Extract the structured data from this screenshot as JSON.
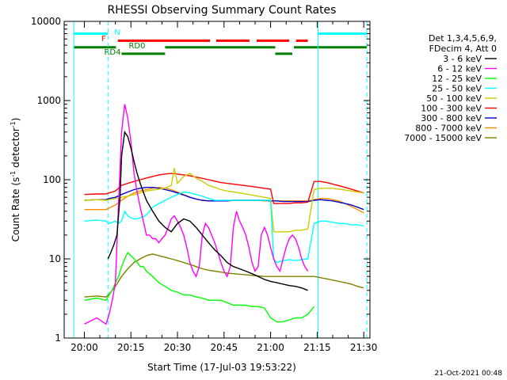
{
  "chart_data": {
    "type": "line",
    "title": "RHESSI Observing Summary Count Rates",
    "xlabel": "Start Time (17-Jul-03 19:53:22)",
    "ylabel_main": "Count Rate (s",
    "ylabel_sup1": "-1",
    "ylabel_mid": " detector",
    "ylabel_sup2": "-1",
    "ylabel_end": ")",
    "ylog": true,
    "ylim": [
      1,
      10000
    ],
    "xlim_minutes": [
      -3.4,
      31.6
    ],
    "x_tick_labels": [
      "20:00",
      "20:15",
      "20:30",
      "20:45",
      "21:00",
      "21:15",
      "21:30"
    ],
    "x_tick_minutes": [
      0,
      15,
      30,
      45,
      60,
      75,
      90
    ],
    "y_tick_labels": [
      "1",
      "10",
      "100",
      "1000",
      "10000"
    ],
    "y_tick_values": [
      1,
      10,
      100,
      1000,
      10000
    ],
    "legend_header": [
      "Det 1,3,4,5,6,9,",
      "FDecim 4, Att 0"
    ],
    "timestamp": "21-Oct-2021 00:48",
    "flags": [
      {
        "label": "N",
        "color": "#00ffff",
        "segments": [
          [
            -3.4,
            7.6
          ],
          [
            75.3,
            91.0
          ]
        ],
        "level": 7000
      },
      {
        "label": "F",
        "color": "#ff0000",
        "segments": [
          [
            10.8,
            40.5
          ],
          [
            42.5,
            53.2
          ],
          [
            55.5,
            66.0
          ],
          [
            68.2,
            72.0
          ]
        ],
        "level": 5700
      },
      {
        "label": "RD0",
        "color": "#008000",
        "segments": [
          [
            -3.4,
            10.2
          ],
          [
            26.0,
            61.5
          ],
          [
            67.5,
            91.0
          ]
        ],
        "level": 4700
      },
      {
        "label": "RD4",
        "color": "#008000",
        "segments": [
          [
            12.0,
            26.0
          ],
          [
            61.5,
            67.0
          ]
        ],
        "level": 3900
      }
    ],
    "vlines_cyan": [
      -3.4,
      7.6,
      75.3,
      91.0
    ],
    "series": [
      {
        "name": "3 - 6 keV",
        "color": "#000000",
        "x": [
          7.6,
          8.5,
          9.5,
          10.5,
          11.5,
          12.0,
          13.0,
          14.0,
          15.0,
          16.0,
          17.0,
          18.0,
          19.0,
          20.0,
          22.0,
          24.0,
          26.0,
          28.0,
          30.0,
          32.0,
          34.0,
          36.0,
          38.0,
          40.0,
          42.0,
          44.0,
          46.0,
          48.0,
          50.0,
          52.0,
          54.0,
          56.0,
          58.0,
          60.0,
          62.0,
          64.0,
          66.0,
          68.0,
          70.0,
          72.0
        ],
        "y": [
          10,
          12,
          15,
          20,
          60,
          200,
          400,
          350,
          250,
          170,
          120,
          90,
          70,
          55,
          40,
          30,
          25,
          22,
          28,
          32,
          30,
          25,
          20,
          16,
          13,
          11,
          9,
          8,
          7.5,
          7,
          6.5,
          6,
          5.5,
          5.2,
          5.0,
          4.8,
          4.6,
          4.5,
          4.3,
          4.0
        ]
      },
      {
        "name": "6 - 12 keV",
        "color": "#ff00ff",
        "x": [
          0,
          4,
          7,
          8,
          9,
          10,
          11,
          12,
          13,
          14,
          15,
          16,
          17,
          18,
          19,
          20,
          21,
          22,
          23,
          24,
          25,
          26,
          27,
          28,
          29,
          30,
          31,
          32,
          33,
          34,
          35,
          36,
          37,
          38,
          39,
          40,
          41,
          42,
          43,
          44,
          45,
          46,
          47,
          48,
          49,
          50,
          51,
          52,
          53,
          54,
          55,
          56,
          57,
          58,
          59,
          60,
          61,
          62,
          63,
          64,
          65,
          66,
          67,
          68,
          69,
          70,
          71,
          72
        ],
        "y": [
          1.5,
          1.8,
          1.5,
          2,
          3,
          5,
          50,
          400,
          900,
          600,
          300,
          120,
          70,
          45,
          30,
          20,
          20,
          18,
          18,
          16,
          18,
          20,
          25,
          32,
          35,
          30,
          25,
          20,
          14,
          9,
          7,
          6,
          8,
          20,
          28,
          25,
          20,
          16,
          12,
          9,
          7,
          6,
          8,
          25,
          40,
          30,
          25,
          20,
          14,
          9,
          7,
          8,
          20,
          25,
          20,
          14,
          10,
          8,
          7,
          10,
          14,
          18,
          20,
          18,
          14,
          10,
          8,
          7
        ]
      },
      {
        "name": "12 - 25 keV",
        "color": "#00ff00",
        "x": [
          0,
          4,
          7,
          8,
          9,
          10,
          11,
          12,
          13,
          14,
          15,
          16,
          17,
          18,
          19,
          20,
          22,
          24,
          26,
          28,
          30,
          32,
          34,
          36,
          38,
          40,
          42,
          44,
          46,
          48,
          50,
          52,
          54,
          56,
          58,
          60,
          62,
          64,
          66,
          68,
          70,
          72,
          74
        ],
        "y": [
          3,
          3.2,
          3,
          3.5,
          4,
          5,
          6,
          8,
          10,
          12,
          11,
          10,
          9,
          8,
          8,
          7,
          6,
          5,
          4.5,
          4,
          3.8,
          3.5,
          3.5,
          3.3,
          3.2,
          3,
          3,
          3,
          2.8,
          2.6,
          2.6,
          2.6,
          2.5,
          2.5,
          2.4,
          1.8,
          1.6,
          1.6,
          1.7,
          1.8,
          1.8,
          2.0,
          2.5
        ]
      },
      {
        "name": "25 - 50 keV",
        "color": "#00ffff",
        "x": [
          0,
          4,
          7,
          8,
          9,
          10,
          11,
          12,
          13,
          14,
          15,
          16,
          17,
          18,
          19,
          20,
          21,
          22,
          24,
          26,
          28,
          30,
          32,
          34,
          36,
          38,
          40,
          42,
          44,
          46,
          48,
          50,
          52,
          54,
          56,
          58,
          60,
          61,
          62,
          64,
          66,
          68,
          70,
          72,
          74,
          76,
          78,
          80,
          82,
          84,
          86,
          88,
          90
        ],
        "y": [
          30,
          31,
          30,
          28,
          29,
          30,
          28,
          30,
          40,
          35,
          33,
          32,
          32,
          33,
          34,
          36,
          40,
          45,
          50,
          55,
          60,
          65,
          70,
          68,
          65,
          62,
          58,
          55,
          55,
          55,
          55,
          55,
          55,
          55,
          55,
          55,
          55,
          10,
          9,
          9.5,
          9.8,
          9.5,
          9.8,
          10,
          28,
          30,
          30,
          29,
          28,
          28,
          27,
          27,
          26
        ]
      },
      {
        "name": "50 - 100 keV",
        "color": "#cccc00",
        "x": [
          0,
          4,
          7,
          8,
          10,
          12,
          14,
          16,
          18,
          20,
          22,
          24,
          26,
          28,
          29,
          30,
          32,
          34,
          36,
          38,
          40,
          42,
          44,
          46,
          48,
          50,
          52,
          54,
          56,
          58,
          60,
          61,
          62,
          64,
          66,
          68,
          70,
          72,
          74,
          76,
          78,
          80,
          82,
          84,
          86,
          88,
          90
        ],
        "y": [
          55,
          56,
          55,
          56,
          58,
          60,
          62,
          65,
          68,
          72,
          74,
          76,
          78,
          85,
          140,
          90,
          110,
          120,
          105,
          95,
          85,
          80,
          75,
          72,
          70,
          68,
          66,
          64,
          62,
          60,
          58,
          22,
          22,
          22,
          22,
          23,
          23,
          24,
          75,
          78,
          78,
          78,
          76,
          74,
          72,
          70,
          68
        ]
      },
      {
        "name": "100 - 300 keV",
        "color": "#ff0000",
        "x": [
          0,
          4,
          7,
          8,
          10,
          12,
          14,
          16,
          18,
          20,
          22,
          24,
          26,
          28,
          30,
          32,
          34,
          36,
          38,
          40,
          42,
          44,
          46,
          48,
          50,
          52,
          54,
          56,
          58,
          60,
          61,
          62,
          64,
          66,
          68,
          70,
          72,
          74,
          76,
          78,
          80,
          82,
          84,
          86,
          88,
          90
        ],
        "y": [
          65,
          66,
          66,
          68,
          72,
          85,
          90,
          95,
          100,
          105,
          110,
          115,
          118,
          120,
          118,
          115,
          112,
          108,
          104,
          100,
          96,
          92,
          90,
          88,
          86,
          84,
          82,
          80,
          78,
          76,
          50,
          50,
          50,
          50,
          51,
          51,
          52,
          95,
          95,
          92,
          88,
          84,
          80,
          76,
          72,
          68
        ]
      },
      {
        "name": "300 - 800 keV",
        "color": "#0000cc",
        "x": [
          0,
          4,
          7,
          8,
          10,
          12,
          14,
          16,
          18,
          20,
          22,
          24,
          26,
          28,
          30,
          32,
          34,
          36,
          38,
          40,
          42,
          44,
          46,
          48,
          50,
          52,
          54,
          56,
          58,
          60,
          62,
          64,
          66,
          68,
          70,
          72,
          74,
          76,
          78,
          80,
          82,
          84,
          86,
          88,
          90
        ],
        "y": [
          55,
          56,
          56,
          58,
          60,
          65,
          70,
          75,
          78,
          80,
          80,
          78,
          75,
          72,
          68,
          64,
          60,
          57,
          55,
          54,
          54,
          54,
          54,
          55,
          55,
          55,
          55,
          55,
          55,
          54,
          54,
          53,
          53,
          53,
          53,
          53,
          55,
          56,
          55,
          54,
          52,
          50,
          48,
          45,
          42
        ]
      },
      {
        "name": "800 - 7000 keV",
        "color": "#ff8c00",
        "x": [
          0,
          4,
          7,
          8,
          10,
          12,
          14,
          16,
          18,
          20,
          22,
          24,
          26,
          28,
          30,
          32,
          34,
          36,
          38,
          40,
          42,
          44,
          46,
          48,
          50,
          52,
          54,
          56,
          58,
          60,
          62,
          64,
          66,
          68,
          70,
          72,
          74,
          76,
          78,
          80,
          82,
          84,
          86,
          88,
          90
        ],
        "y": [
          42,
          42,
          42,
          44,
          48,
          55,
          62,
          68,
          72,
          75,
          78,
          80,
          78,
          75,
          70,
          65,
          60,
          57,
          55,
          54,
          54,
          54,
          54,
          55,
          55,
          55,
          55,
          55,
          54,
          54,
          54,
          54,
          54,
          54,
          54,
          54,
          56,
          58,
          58,
          56,
          54,
          50,
          46,
          42,
          38
        ]
      },
      {
        "name": "7000 - 15000 keV",
        "color": "#808000",
        "x": [
          0,
          4,
          7,
          8,
          10,
          12,
          14,
          16,
          18,
          20,
          22,
          24,
          26,
          28,
          30,
          32,
          34,
          36,
          38,
          40,
          42,
          44,
          46,
          48,
          50,
          52,
          54,
          56,
          58,
          60,
          62,
          64,
          66,
          68,
          70,
          72,
          74,
          76,
          78,
          80,
          82,
          84,
          86,
          88,
          90
        ],
        "y": [
          3.3,
          3.4,
          3.3,
          3.6,
          4.5,
          6,
          7.5,
          9,
          10,
          11,
          11.5,
          11,
          10.5,
          10,
          9.5,
          9,
          8.5,
          8,
          7.5,
          7.2,
          7,
          6.8,
          6.6,
          6.5,
          6.4,
          6.3,
          6.2,
          6.1,
          6,
          6,
          6,
          6,
          6,
          6,
          6,
          6,
          6,
          5.8,
          5.6,
          5.4,
          5.2,
          5,
          4.8,
          4.5,
          4.3
        ]
      }
    ]
  }
}
